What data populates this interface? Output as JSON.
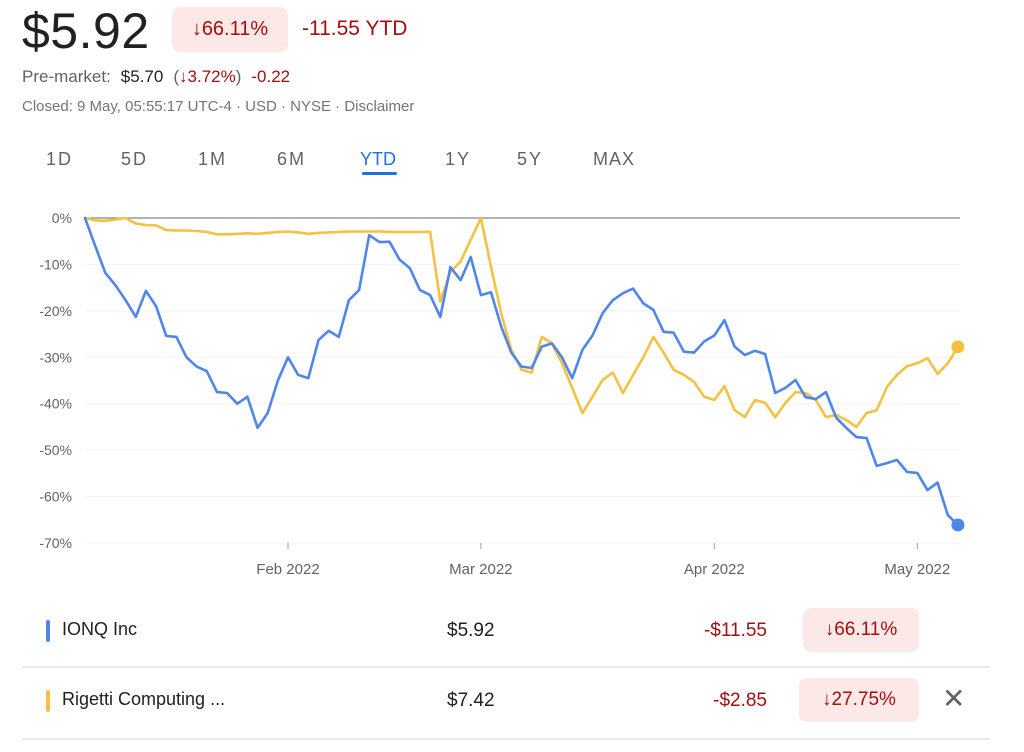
{
  "header": {
    "price": "$5.92",
    "change_pct": "↓66.11%",
    "change_ytd": "-11.55 YTD",
    "premarket_label": "Pre-market:",
    "premarket_price": "$5.70",
    "premarket_open_paren": "(",
    "premarket_pct": "↓3.72%",
    "premarket_close_paren": ")",
    "premarket_change": "-0.22",
    "closed_info": "Closed: 9 May, 05:55:17 UTC-4 · USD · NYSE · Disclaimer"
  },
  "tabs": [
    {
      "label": "1D"
    },
    {
      "label": "5D"
    },
    {
      "label": "1M"
    },
    {
      "label": "6M"
    },
    {
      "label": "YTD",
      "active": true
    },
    {
      "label": "1Y"
    },
    {
      "label": "5Y"
    },
    {
      "label": "MAX"
    }
  ],
  "colors": {
    "ionq": "#4f86ec",
    "rigetti": "#f4c142",
    "negative": "#a50e0e",
    "accent": "#1a73e8"
  },
  "chart_data": {
    "type": "line",
    "x_range": [
      "2022-01-03",
      "2022-05-06"
    ],
    "x_axis": "trading days",
    "x_ticks": [
      "Feb 2022",
      "Mar 2022",
      "Apr 2022",
      "May 2022"
    ],
    "y_ticks": [
      "0%",
      "-10%",
      "-20%",
      "-30%",
      "-40%",
      "-50%",
      "-60%",
      "-70%"
    ],
    "ylim": [
      -70,
      0
    ],
    "yunit": "%",
    "grid": true,
    "series": [
      {
        "name": "IONQ Inc",
        "color": "#4f86ec",
        "values": [
          0,
          -6,
          -11.8,
          -14.5,
          -17.7,
          -21.3,
          -15.7,
          -19,
          -25.4,
          -25.6,
          -30,
          -32,
          -33,
          -37.5,
          -37.7,
          -40,
          -38.5,
          -45.2,
          -42,
          -35,
          -30,
          -33.8,
          -34.5,
          -26.3,
          -24.3,
          -25.6,
          -17.7,
          -15.5,
          -3.7,
          -5.2,
          -5.1,
          -9,
          -10.8,
          -15.5,
          -16.6,
          -21.3,
          -10.6,
          -13.4,
          -8.4,
          -16.6,
          -16,
          -23.4,
          -29,
          -32,
          -32.3,
          -27.7,
          -27,
          -30,
          -34.5,
          -28.4,
          -25.3,
          -20.5,
          -17.7,
          -16.2,
          -15.2,
          -18.4,
          -19.8,
          -24.5,
          -24.7,
          -28.8,
          -29,
          -26.6,
          -25.3,
          -22,
          -27.7,
          -29.5,
          -28.6,
          -29.3,
          -37.7,
          -36.6,
          -34.9,
          -38.6,
          -39,
          -37.5,
          -43,
          -45.2,
          -47.2,
          -47.4,
          -53.4,
          -52.8,
          -52.1,
          -54.7,
          -54.9,
          -58.6,
          -57,
          -64,
          -66.11
        ]
      },
      {
        "name": "Rigetti Computing ...",
        "color": "#f4c142",
        "values": [
          0,
          -0.5,
          -0.6,
          -0.3,
          0,
          -1.2,
          -1.5,
          -1.6,
          -2.6,
          -2.7,
          -2.7,
          -2.8,
          -3,
          -3.5,
          -3.5,
          -3.4,
          -3.3,
          -3.4,
          -3.2,
          -3,
          -2.9,
          -3.1,
          -3.4,
          -3.2,
          -3.1,
          -3,
          -2.9,
          -2.9,
          -2.9,
          -2.9,
          -3,
          -3,
          -3,
          -3,
          -3,
          -18,
          -11.6,
          -9.4,
          -4.7,
          0,
          -10.5,
          -20.5,
          -28.4,
          -32.7,
          -33.3,
          -25.6,
          -27,
          -31.3,
          -36.6,
          -42,
          -38.5,
          -34.9,
          -33.3,
          -37.7,
          -33.8,
          -30,
          -25.6,
          -29,
          -32.7,
          -33.8,
          -35.3,
          -38.5,
          -39.2,
          -36.2,
          -41.4,
          -42.9,
          -39.2,
          -39.8,
          -42.9,
          -39.8,
          -37.5,
          -37.7,
          -39.2,
          -42.9,
          -42.4,
          -43.5,
          -45,
          -42,
          -41.4,
          -36.4,
          -33.8,
          -31.9,
          -31.3,
          -30.2,
          -33.6,
          -31.3,
          -27.75
        ]
      }
    ]
  },
  "comparison": [
    {
      "name": "IONQ Inc",
      "price": "$5.92",
      "change": "-$11.55",
      "pct": "↓66.11%"
    },
    {
      "name": "Rigetti Computing ...",
      "price": "$7.42",
      "change": "-$2.85",
      "pct": "↓27.75%",
      "remove": "✕"
    }
  ]
}
